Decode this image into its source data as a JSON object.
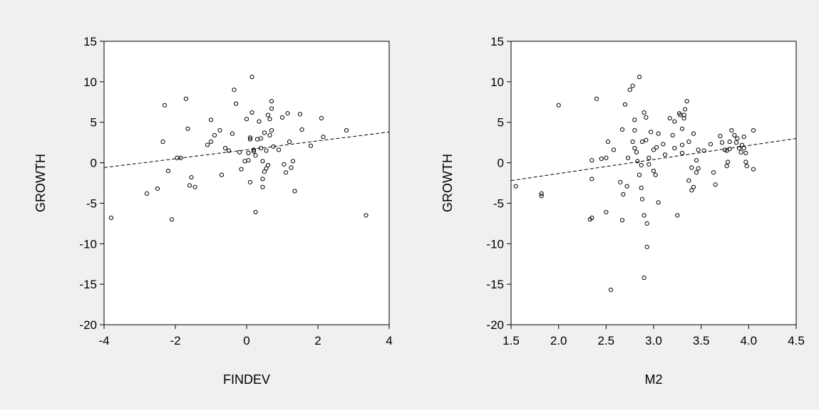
{
  "style": {
    "background": "#f0f0f0",
    "plot_background": "#ffffff",
    "axis_color": "#000000",
    "marker_color": "#000000",
    "fit_line_color": "#000000"
  },
  "chart_data": [
    {
      "type": "scatter",
      "title": "",
      "xlabel": "FINDEV",
      "ylabel": "GROWTH",
      "xlim": [
        -4,
        4
      ],
      "ylim": [
        -20,
        15
      ],
      "xticks": [
        -4,
        -2,
        0,
        2,
        4
      ],
      "xtick_labels": [
        "-4",
        "-2",
        "0",
        "2",
        "4"
      ],
      "yticks": [
        -20,
        -15,
        -10,
        -5,
        0,
        5,
        10,
        15
      ],
      "ytick_labels": [
        "-20",
        "-15",
        "-10",
        "-5",
        "0",
        "5",
        "10",
        "15"
      ],
      "marker": "open-circle",
      "grid": false,
      "legend": false,
      "fit_line": {
        "style": "dashed",
        "points": [
          [
            -4,
            -0.6
          ],
          [
            4,
            3.8
          ]
        ]
      },
      "points": [
        [
          -3.8,
          -6.8
        ],
        [
          -2.8,
          -3.8
        ],
        [
          -2.5,
          -3.2
        ],
        [
          -2.35,
          2.6
        ],
        [
          -2.3,
          7.1
        ],
        [
          -2.2,
          -1.0
        ],
        [
          -2.1,
          -7.0
        ],
        [
          -1.95,
          0.6
        ],
        [
          -1.85,
          0.6
        ],
        [
          -1.7,
          7.9
        ],
        [
          -1.65,
          4.2
        ],
        [
          -1.6,
          -2.8
        ],
        [
          -1.55,
          -1.8
        ],
        [
          -1.45,
          -3.0
        ],
        [
          -1.1,
          2.2
        ],
        [
          -1.0,
          5.3
        ],
        [
          -1.0,
          2.6
        ],
        [
          -0.9,
          3.4
        ],
        [
          -0.75,
          4.0
        ],
        [
          -0.7,
          -1.5
        ],
        [
          -0.6,
          1.8
        ],
        [
          -0.5,
          1.5
        ],
        [
          -0.4,
          3.6
        ],
        [
          -0.35,
          9.0
        ],
        [
          -0.3,
          7.3
        ],
        [
          -0.2,
          1.3
        ],
        [
          -0.15,
          -0.8
        ],
        [
          -0.05,
          0.2
        ],
        [
          0.0,
          5.4
        ],
        [
          0.05,
          0.3
        ],
        [
          0.05,
          1.2
        ],
        [
          0.1,
          2.9
        ],
        [
          0.1,
          3.1
        ],
        [
          0.1,
          -2.4
        ],
        [
          0.15,
          10.6
        ],
        [
          0.15,
          6.2
        ],
        [
          0.2,
          1.6
        ],
        [
          0.2,
          1.4
        ],
        [
          0.25,
          -6.1
        ],
        [
          0.25,
          0.9
        ],
        [
          0.3,
          2.9
        ],
        [
          0.35,
          5.1
        ],
        [
          0.4,
          1.8
        ],
        [
          0.4,
          3.0
        ],
        [
          0.45,
          0.2
        ],
        [
          0.45,
          -2.0
        ],
        [
          0.45,
          -3.0
        ],
        [
          0.5,
          3.7
        ],
        [
          0.5,
          -1.1
        ],
        [
          0.55,
          1.5
        ],
        [
          0.55,
          -0.7
        ],
        [
          0.6,
          5.9
        ],
        [
          0.6,
          -0.3
        ],
        [
          0.65,
          5.4
        ],
        [
          0.65,
          3.4
        ],
        [
          0.7,
          7.6
        ],
        [
          0.7,
          6.7
        ],
        [
          0.7,
          4.0
        ],
        [
          0.75,
          2.0
        ],
        [
          0.9,
          1.6
        ],
        [
          1.0,
          5.6
        ],
        [
          1.05,
          -0.2
        ],
        [
          1.1,
          -1.2
        ],
        [
          1.15,
          6.1
        ],
        [
          1.2,
          2.6
        ],
        [
          1.25,
          -0.6
        ],
        [
          1.3,
          0.2
        ],
        [
          1.35,
          -3.5
        ],
        [
          1.5,
          6.0
        ],
        [
          1.55,
          4.1
        ],
        [
          1.8,
          2.1
        ],
        [
          2.1,
          5.5
        ],
        [
          2.15,
          3.2
        ],
        [
          2.8,
          4.0
        ],
        [
          3.35,
          -6.5
        ]
      ]
    },
    {
      "type": "scatter",
      "title": "",
      "xlabel": "M2",
      "ylabel": "GROWTH",
      "xlim": [
        1.5,
        4.5
      ],
      "ylim": [
        -20,
        15
      ],
      "xticks": [
        1.5,
        2.0,
        2.5,
        3.0,
        3.5,
        4.0,
        4.5
      ],
      "xtick_labels": [
        "1.5",
        "2.0",
        "2.5",
        "3.0",
        "3.5",
        "4.0",
        "4.5"
      ],
      "yticks": [
        -20,
        -15,
        -10,
        -5,
        0,
        5,
        10,
        15
      ],
      "ytick_labels": [
        "-20",
        "-15",
        "-10",
        "-5",
        "0",
        "5",
        "10",
        "15"
      ],
      "marker": "open-circle",
      "grid": false,
      "legend": false,
      "fit_line": {
        "style": "dashed",
        "points": [
          [
            1.5,
            -2.2
          ],
          [
            4.5,
            3.0
          ]
        ]
      },
      "points": [
        [
          1.55,
          -2.9
        ],
        [
          1.82,
          -3.8
        ],
        [
          1.82,
          -4.1
        ],
        [
          2.0,
          7.1
        ],
        [
          2.33,
          -7.0
        ],
        [
          2.35,
          -6.8
        ],
        [
          2.35,
          0.3
        ],
        [
          2.35,
          -2.0
        ],
        [
          2.4,
          7.9
        ],
        [
          2.45,
          0.5
        ],
        [
          2.5,
          0.6
        ],
        [
          2.5,
          -6.1
        ],
        [
          2.52,
          2.6
        ],
        [
          2.55,
          -15.7
        ],
        [
          2.58,
          1.6
        ],
        [
          2.65,
          -2.4
        ],
        [
          2.67,
          4.1
        ],
        [
          2.67,
          -7.1
        ],
        [
          2.68,
          -3.9
        ],
        [
          2.7,
          7.2
        ],
        [
          2.72,
          -2.9
        ],
        [
          2.73,
          0.6
        ],
        [
          2.75,
          9.0
        ],
        [
          2.78,
          9.5
        ],
        [
          2.78,
          2.6
        ],
        [
          2.8,
          5.3
        ],
        [
          2.8,
          4.0
        ],
        [
          2.8,
          1.8
        ],
        [
          2.82,
          1.3
        ],
        [
          2.83,
          0.2
        ],
        [
          2.85,
          10.6
        ],
        [
          2.85,
          -1.5
        ],
        [
          2.87,
          -0.3
        ],
        [
          2.87,
          -3.1
        ],
        [
          2.88,
          2.6
        ],
        [
          2.88,
          -4.5
        ],
        [
          2.9,
          6.2
        ],
        [
          2.9,
          -14.2
        ],
        [
          2.9,
          -6.5
        ],
        [
          2.92,
          5.6
        ],
        [
          2.92,
          2.8
        ],
        [
          2.93,
          -7.5
        ],
        [
          2.93,
          -10.4
        ],
        [
          2.95,
          0.6
        ],
        [
          2.95,
          -0.2
        ],
        [
          2.97,
          3.8
        ],
        [
          3.0,
          1.6
        ],
        [
          3.0,
          -1.0
        ],
        [
          3.02,
          -1.5
        ],
        [
          3.03,
          1.9
        ],
        [
          3.05,
          -4.9
        ],
        [
          3.05,
          3.6
        ],
        [
          3.1,
          2.3
        ],
        [
          3.12,
          1.0
        ],
        [
          3.17,
          5.5
        ],
        [
          3.2,
          3.4
        ],
        [
          3.22,
          5.1
        ],
        [
          3.22,
          1.8
        ],
        [
          3.25,
          -6.5
        ],
        [
          3.27,
          6.1
        ],
        [
          3.28,
          5.9
        ],
        [
          3.3,
          4.2
        ],
        [
          3.3,
          2.2
        ],
        [
          3.3,
          1.2
        ],
        [
          3.32,
          5.9
        ],
        [
          3.32,
          5.5
        ],
        [
          3.33,
          6.6
        ],
        [
          3.35,
          7.6
        ],
        [
          3.37,
          2.6
        ],
        [
          3.37,
          -2.2
        ],
        [
          3.4,
          -0.6
        ],
        [
          3.4,
          -3.4
        ],
        [
          3.42,
          3.6
        ],
        [
          3.42,
          -3.0
        ],
        [
          3.45,
          0.3
        ],
        [
          3.45,
          -1.2
        ],
        [
          3.47,
          1.6
        ],
        [
          3.47,
          -0.7
        ],
        [
          3.53,
          1.5
        ],
        [
          3.6,
          2.3
        ],
        [
          3.63,
          -1.2
        ],
        [
          3.65,
          -2.7
        ],
        [
          3.7,
          3.3
        ],
        [
          3.72,
          2.5
        ],
        [
          3.75,
          1.6
        ],
        [
          3.77,
          1.5
        ],
        [
          3.77,
          -0.4
        ],
        [
          3.78,
          0.1
        ],
        [
          3.8,
          2.6
        ],
        [
          3.8,
          1.7
        ],
        [
          3.82,
          4.0
        ],
        [
          3.85,
          3.4
        ],
        [
          3.87,
          2.5
        ],
        [
          3.88,
          3.0
        ],
        [
          3.9,
          1.8
        ],
        [
          3.92,
          1.3
        ],
        [
          3.93,
          2.2
        ],
        [
          3.95,
          1.8
        ],
        [
          3.95,
          3.2
        ],
        [
          3.97,
          1.2
        ],
        [
          3.97,
          0.1
        ],
        [
          3.98,
          -0.4
        ],
        [
          4.05,
          4.0
        ],
        [
          4.05,
          -0.8
        ]
      ]
    }
  ]
}
